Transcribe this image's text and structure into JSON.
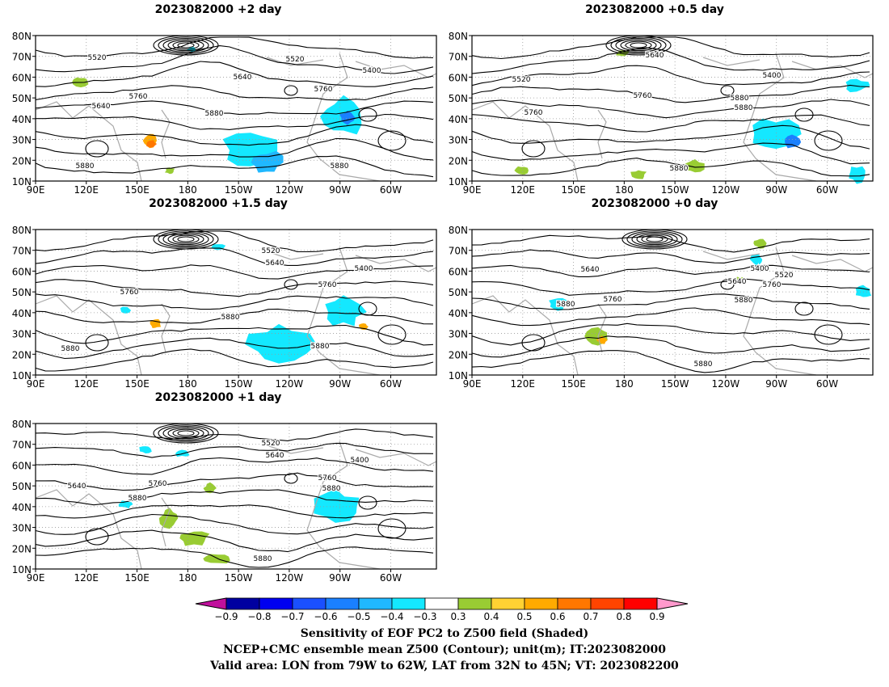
{
  "panels": [
    {
      "title": "2023082000 +2 day",
      "labels": [
        "5520",
        "5400",
        "5640",
        "5520",
        "5760",
        "5640",
        "5760",
        "5880",
        "5880",
        "5880"
      ]
    },
    {
      "title": "2023082000 +0.5 day",
      "labels": [
        "5520",
        "5640",
        "5400",
        "5760",
        "5880",
        "5760",
        "5880",
        "5880"
      ]
    },
    {
      "title": "2023082000 +1.5 day",
      "labels": [
        "5520",
        "5640",
        "5400",
        "5760",
        "5760",
        "5880",
        "5880",
        "5880"
      ]
    },
    {
      "title": "2023082000 +0 day",
      "labels": [
        "5640",
        "5400",
        "5520",
        "5640",
        "5760",
        "5760",
        "5880",
        "5880",
        "5880"
      ]
    },
    {
      "title": "2023082000 +1 day",
      "labels": [
        "5520",
        "5640",
        "5400",
        "5640",
        "5760",
        "5760",
        "5880",
        "5880",
        "5880"
      ]
    }
  ],
  "lat_ticks": [
    "80N",
    "70N",
    "60N",
    "50N",
    "40N",
    "30N",
    "20N",
    "10N"
  ],
  "lon_ticks": [
    "90E",
    "120E",
    "150E",
    "180",
    "150W",
    "120W",
    "90W",
    "60W"
  ],
  "colorbar": {
    "ticks": [
      "-0.9",
      "-0.8",
      "-0.7",
      "-0.6",
      "-0.5",
      "-0.4",
      "-0.3",
      "0.3",
      "0.4",
      "0.5",
      "0.6",
      "0.7",
      "0.8",
      "0.9"
    ],
    "colors": [
      "#c0109c",
      "#0000a0",
      "#0000f0",
      "#1a50ff",
      "#1a80ff",
      "#20b8ff",
      "#14e8ff",
      "#ffffff",
      "#99cc33",
      "#ffd233",
      "#ffaa00",
      "#ff7700",
      "#ff4400",
      "#ff0000",
      "#ff99cc"
    ]
  },
  "caption": {
    "line1": "Sensitivity of EOF PC2 to Z500 field (Shaded)",
    "line2": "NCEP+CMC ensemble mean Z500 (Contour); unit(m); IT:2023082000",
    "line3": "Valid area: LON from 79W to 62W, LAT from 32N to 45N; VT: 2023082200"
  }
}
